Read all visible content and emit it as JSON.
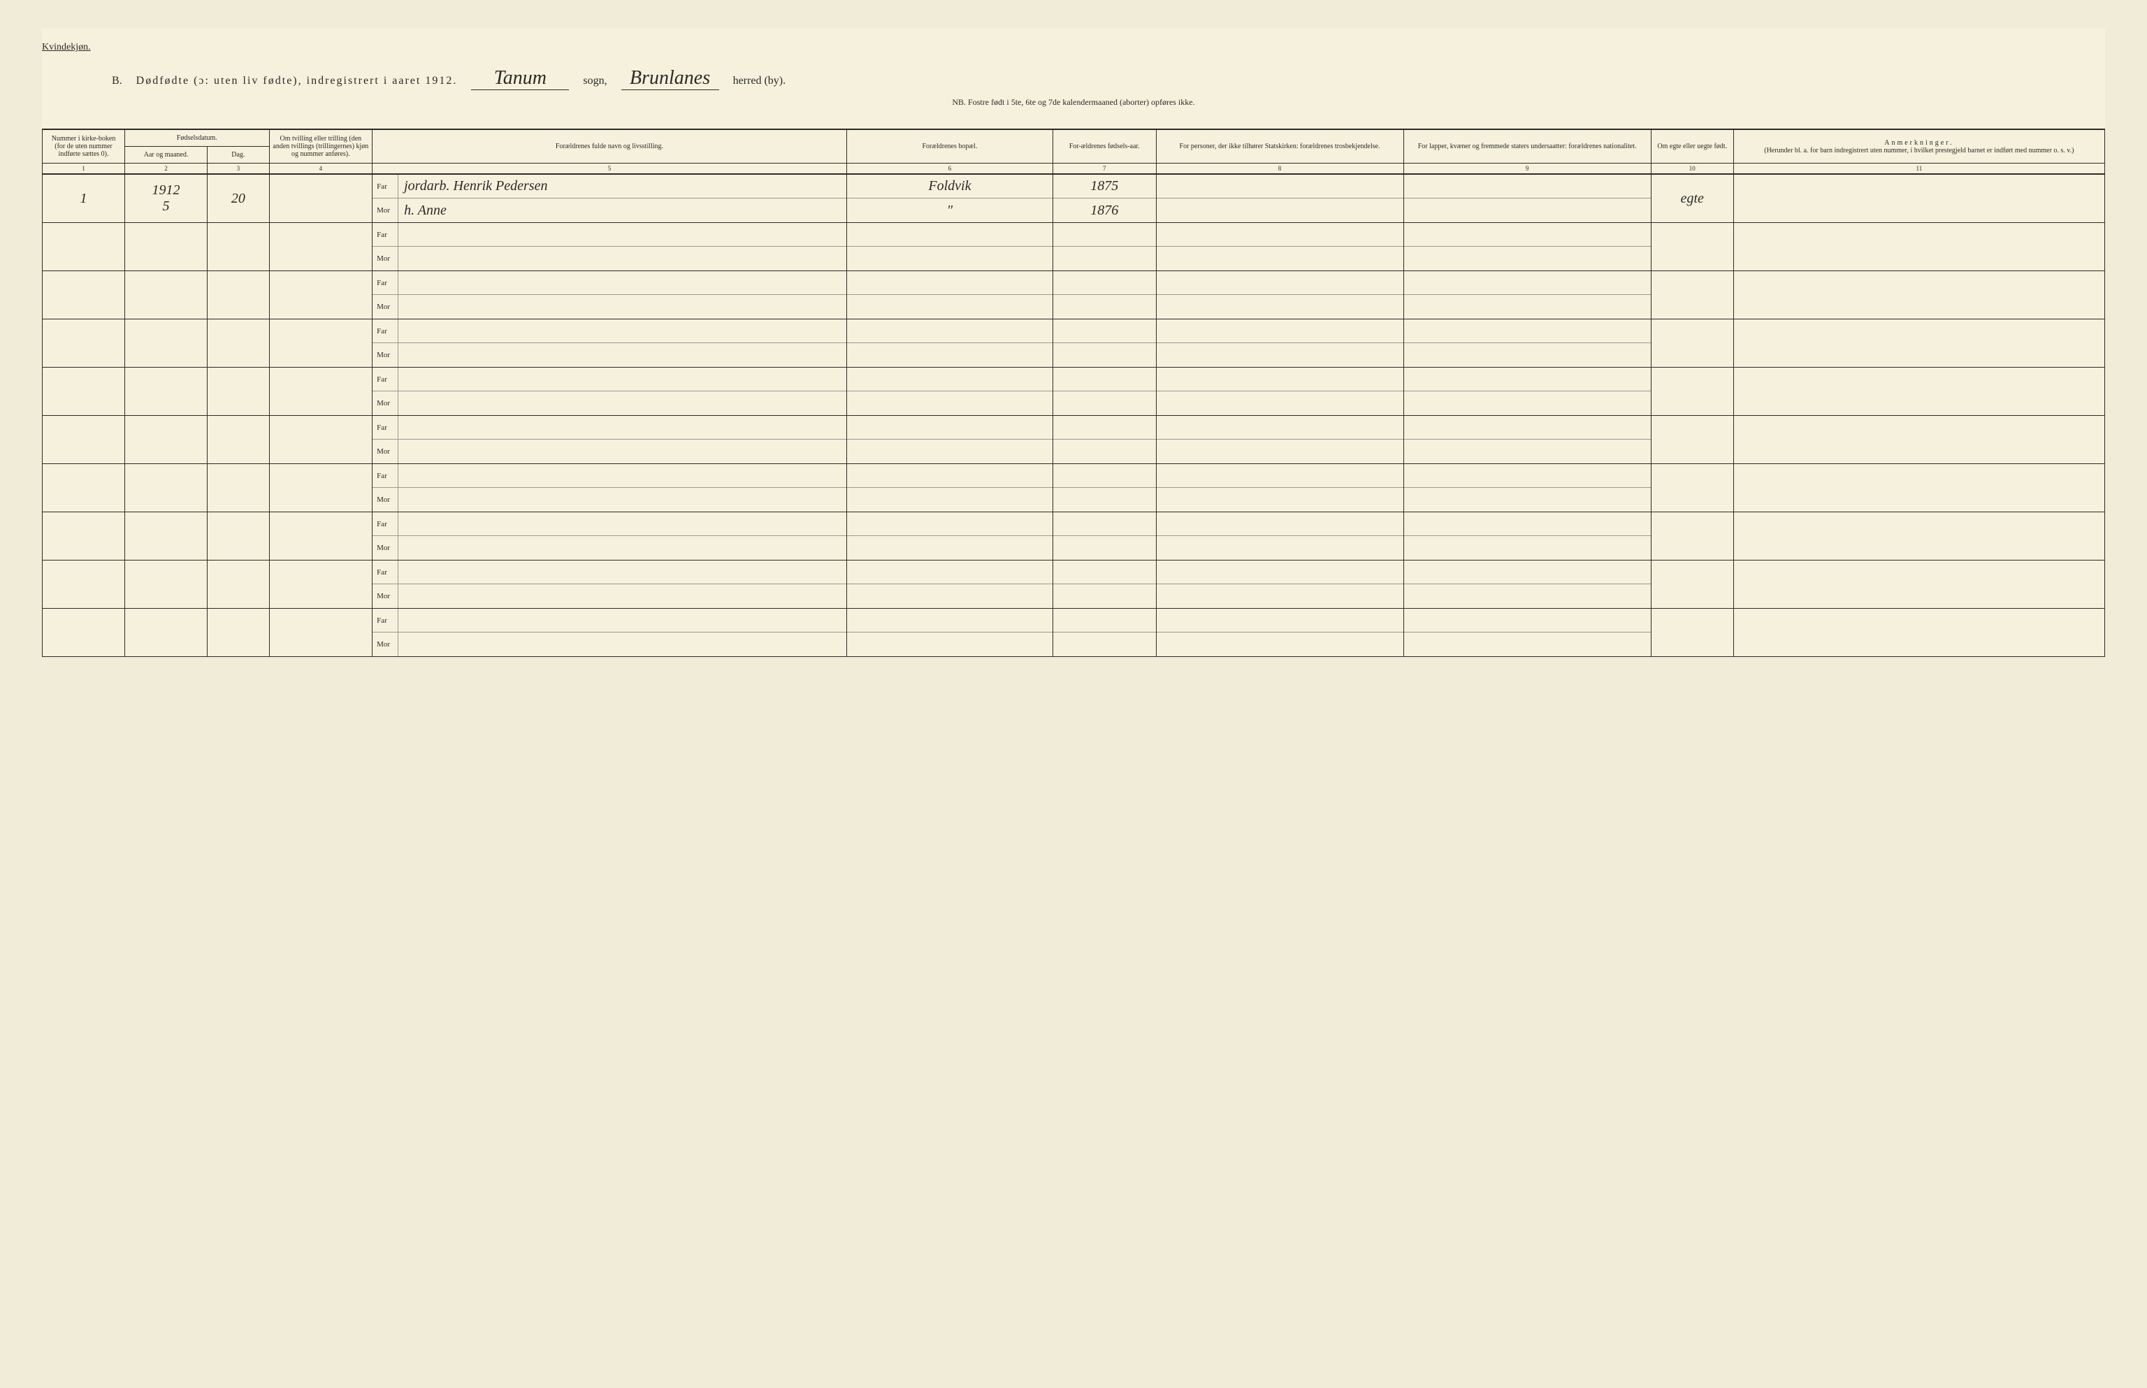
{
  "header": {
    "gender_label": "Kvindekjøn.",
    "section_letter": "B.",
    "title_main": "Dødfødte (ɔ: uten liv fødte), indregistrert i aaret 191",
    "year_suffix": "2.",
    "sogn_value": "Tanum",
    "sogn_label": "sogn,",
    "herred_value": "Brunlanes",
    "herred_label": "herred (by).",
    "subtitle": "NB.  Fostre født i 5te, 6te og 7de kalendermaaned (aborter) opføres ikke."
  },
  "columns": {
    "col1": "Nummer i kirke-boken (for de uten nummer indførte sættes 0).",
    "col2_group": "Fødselsdatum.",
    "col2a": "Aar og maaned.",
    "col2b": "Dag.",
    "col4": "Om tvilling eller trilling (den anden tvillings (trillingernes) kjøn og nummer anføres).",
    "col5": "Forældrenes fulde navn og livsstilling.",
    "col6": "Forældrenes bopæl.",
    "col7": "For-ældrenes fødsels-aar.",
    "col8": "For personer, der ikke tilhører Statskirken: forældrenes trosbekjendelse.",
    "col9": "For lapper, kvæner og fremmede staters undersaatter: forældrenes nationalitet.",
    "col10": "Om egte eller uegte født.",
    "col11_title": "Anmerkninger.",
    "col11_sub": "(Herunder bl. a. for barn indregistrert uten nummer, i hvilket prestegjeld barnet er indført med nummer o. s. v.)"
  },
  "col_numbers": [
    "1",
    "2",
    "3",
    "4",
    "5",
    "6",
    "7",
    "8",
    "9",
    "10",
    "11"
  ],
  "labels": {
    "far": "Far",
    "mor": "Mor"
  },
  "entries": [
    {
      "num": "1",
      "year_month": "1912\n5",
      "day": "20",
      "tvilling": "",
      "far_name": "jordarb.  Henrik Pedersen",
      "mor_name": "h. Anne",
      "far_place": "Foldvik",
      "mor_place": "\"",
      "far_year": "1875",
      "mor_year": "1876",
      "far_col8": "",
      "mor_col8": "",
      "far_col9": "",
      "mor_col9": "",
      "egte": "egte",
      "remarks": ""
    }
  ],
  "empty_rows": 9,
  "styling": {
    "background_color": "#f5f1dc",
    "text_color": "#2a2a2a",
    "border_color": "#2a2a2a",
    "handwriting_font": "Brush Script MT",
    "print_font": "Georgia",
    "header_fontsize": 16,
    "cell_fontsize": 10
  }
}
